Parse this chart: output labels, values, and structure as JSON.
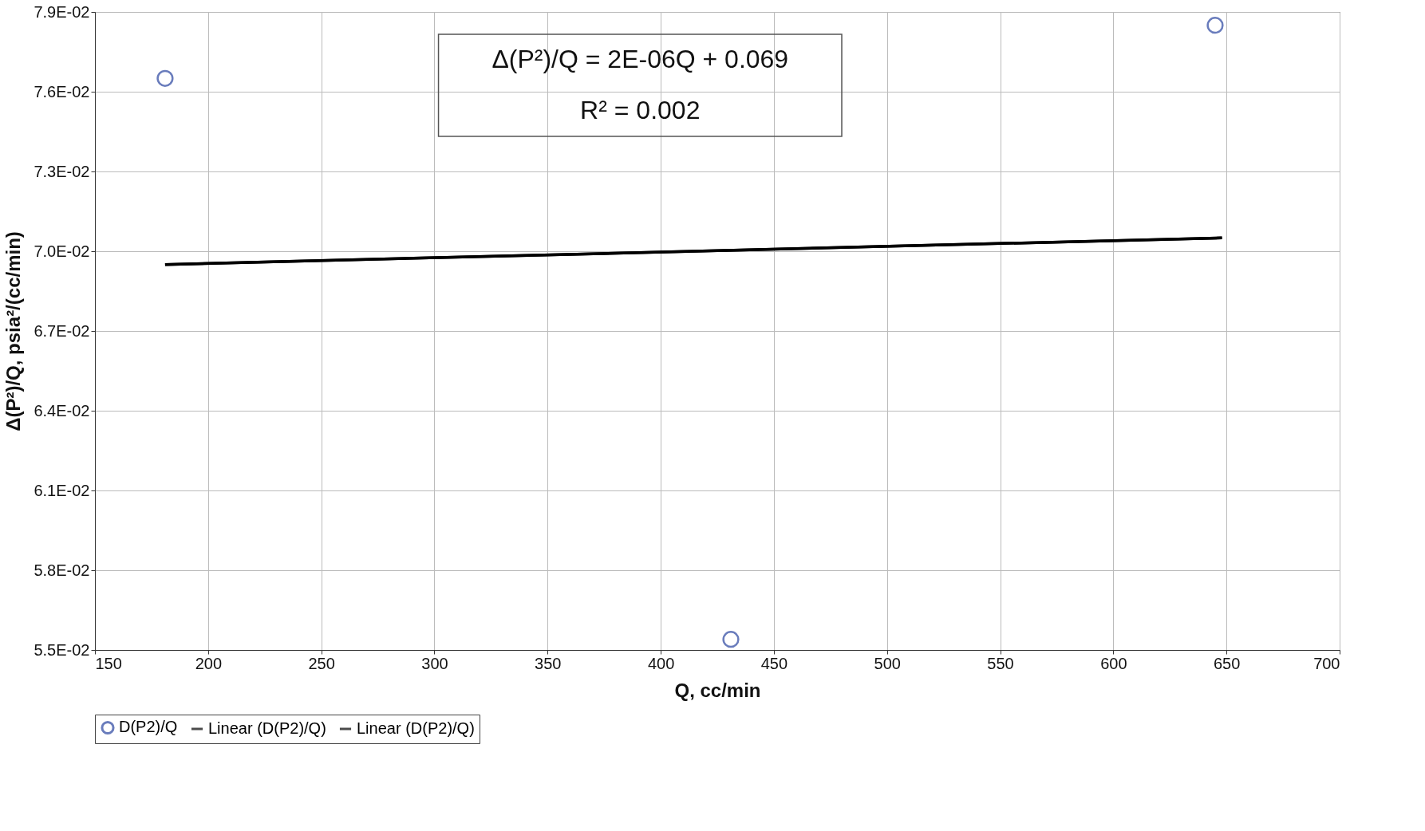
{
  "chart_data": {
    "type": "scatter",
    "xlabel": "Q, cc/min",
    "ylabel": "Δ(P²)/Q, psia²/(cc/min)",
    "xlim": [
      150,
      700
    ],
    "xticks": [
      150,
      200,
      250,
      300,
      350,
      400,
      450,
      500,
      550,
      600,
      650,
      700
    ],
    "ylim": [
      0.055,
      0.079
    ],
    "yticks": [
      {
        "value": 0.055,
        "label": "5.5E-02"
      },
      {
        "value": 0.058,
        "label": "5.8E-02"
      },
      {
        "value": 0.061,
        "label": "6.1E-02"
      },
      {
        "value": 0.064,
        "label": "6.4E-02"
      },
      {
        "value": 0.067,
        "label": "6.7E-02"
      },
      {
        "value": 0.07,
        "label": "7.0E-02"
      },
      {
        "value": 0.073,
        "label": "7.3E-02"
      },
      {
        "value": 0.076,
        "label": "7.6E-02"
      },
      {
        "value": 0.079,
        "label": "7.9E-02"
      }
    ],
    "grid": true,
    "legend": "bottom",
    "series": [
      {
        "name": "D(P2)/Q",
        "marker": "circle",
        "color": "#2a45a0",
        "x": [
          181,
          431,
          645
        ],
        "values": [
          0.0765,
          0.0554,
          0.0785
        ]
      },
      {
        "name": "Linear (D(P2)/Q)",
        "type": "line",
        "color": "#000000",
        "x": [
          181,
          648
        ],
        "values": [
          0.0695,
          0.0705
        ]
      },
      {
        "name": "Linear (D(P2)/Q)",
        "type": "line",
        "color": "#000000",
        "x": [
          181,
          648
        ],
        "values": [
          0.0695,
          0.0705
        ]
      }
    ],
    "annotations": [
      "Δ(P²)/Q = 2E-06Q + 0.069",
      "R² = 0.002"
    ]
  }
}
